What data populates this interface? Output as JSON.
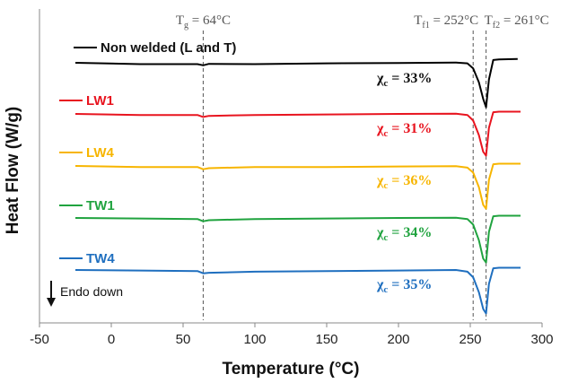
{
  "chart_data": {
    "type": "line",
    "xlabel": "Temperature (°C)",
    "ylabel": "Heat Flow (W/g)",
    "xlim": [
      -50,
      300
    ],
    "x_ticks": [
      -50,
      0,
      50,
      100,
      150,
      200,
      250,
      300
    ],
    "x_tick_labels": [
      "-50",
      "0",
      "50",
      "100",
      "150",
      "200",
      "250",
      "300"
    ],
    "grid": false,
    "vertical_lines": [
      {
        "x": 64,
        "label_main": "T",
        "label_sub": "g",
        "label_value": " = 64°C"
      },
      {
        "x": 252,
        "label_main": "T",
        "label_sub": "f1",
        "label_value": " = 252°C"
      },
      {
        "x": 261,
        "label_main": "T",
        "label_sub": "f2",
        "label_value": " = 261°C"
      }
    ],
    "series": [
      {
        "name": "Non welded (L and T)",
        "color": "#000000",
        "crystallinity_label": " = 33%",
        "baseline": 0.0,
        "x": [
          -25,
          20,
          60,
          64,
          68,
          100,
          150,
          200,
          240,
          248,
          252,
          256,
          259,
          261,
          263,
          266,
          270,
          283
        ],
        "y": [
          0,
          -0.25,
          -0.25,
          -0.45,
          -0.2,
          -0.25,
          -0.1,
          -0.05,
          0.05,
          -0.1,
          -1.0,
          -3.5,
          -6.5,
          -8.0,
          -3.0,
          0.5,
          0.6,
          0.7
        ]
      },
      {
        "name": "LW1",
        "color": "#e8141f",
        "crystallinity_label": " = 31%",
        "baseline": 0.0,
        "x": [
          -25,
          20,
          60,
          64,
          68,
          100,
          150,
          200,
          240,
          248,
          252,
          256,
          259,
          261,
          263,
          266,
          270,
          285
        ],
        "y": [
          0,
          -0.2,
          -0.2,
          -0.55,
          -0.35,
          -0.2,
          -0.1,
          0.0,
          0.05,
          -0.2,
          -1.2,
          -3.8,
          -6.8,
          -7.5,
          -2.5,
          0.3,
          0.4,
          0.4
        ]
      },
      {
        "name": "LW4",
        "color": "#f7b500",
        "crystallinity_label": " = 36%",
        "baseline": 0.0,
        "x": [
          -25,
          20,
          60,
          64,
          68,
          100,
          150,
          200,
          240,
          248,
          252,
          256,
          259,
          261,
          263,
          266,
          270,
          285
        ],
        "y": [
          0,
          -0.2,
          -0.2,
          -0.6,
          -0.4,
          -0.2,
          -0.2,
          -0.1,
          -0.05,
          -0.3,
          -1.2,
          -3.8,
          -7.0,
          -7.7,
          -2.5,
          0.3,
          0.4,
          0.4
        ]
      },
      {
        "name": "TW1",
        "color": "#20a33f",
        "crystallinity_label": " = 34%",
        "baseline": 0.0,
        "x": [
          -25,
          20,
          60,
          64,
          68,
          100,
          150,
          200,
          240,
          248,
          252,
          256,
          259,
          261,
          263,
          266,
          270,
          285
        ],
        "y": [
          0,
          -0.1,
          -0.2,
          -0.6,
          -0.4,
          -0.2,
          -0.1,
          0.0,
          0.05,
          -0.2,
          -1.2,
          -4.0,
          -7.3,
          -8.0,
          -2.5,
          0.3,
          0.4,
          0.4
        ]
      },
      {
        "name": "TW4",
        "color": "#1f6fbf",
        "crystallinity_label": " = 35%",
        "baseline": 0.0,
        "x": [
          -25,
          20,
          60,
          64,
          68,
          100,
          150,
          200,
          240,
          248,
          252,
          256,
          259,
          261,
          263,
          266,
          270,
          285
        ],
        "y": [
          0,
          -0.1,
          -0.2,
          -0.6,
          -0.5,
          -0.3,
          -0.2,
          -0.1,
          0.0,
          -0.3,
          -1.3,
          -4.0,
          -7.0,
          -7.8,
          -2.5,
          0.3,
          0.4,
          0.4
        ]
      }
    ],
    "crystallinity_symbol": "χ",
    "crystallinity_sub": "c",
    "annotation": "Endo down"
  }
}
